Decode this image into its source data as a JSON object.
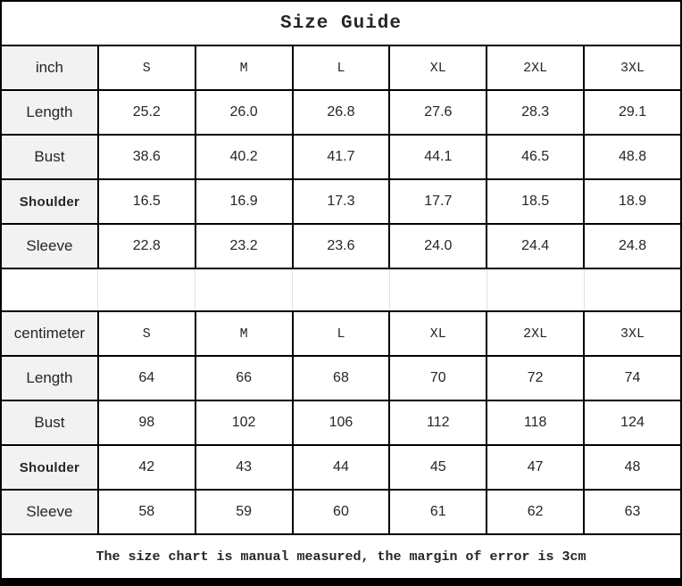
{
  "title": "Size Guide",
  "footer": "The size chart is manual measured, the margin of error is 3cm",
  "colors": {
    "label_bg": "#f2f2f2",
    "grid": "#000000",
    "faint_grid": "#e0e0e0"
  },
  "sections": [
    {
      "unit": "inch",
      "sizes": [
        "S",
        "M",
        "L",
        "XL",
        "2XL",
        "3XL"
      ],
      "rows": [
        {
          "label": "Length",
          "values": [
            "25.2",
            "26.0",
            "26.8",
            "27.6",
            "28.3",
            "29.1"
          ]
        },
        {
          "label": "Bust",
          "values": [
            "38.6",
            "40.2",
            "41.7",
            "44.1",
            "46.5",
            "48.8"
          ]
        },
        {
          "label": "Shoulder",
          "values": [
            "16.5",
            "16.9",
            "17.3",
            "17.7",
            "18.5",
            "18.9"
          ]
        },
        {
          "label": "Sleeve",
          "values": [
            "22.8",
            "23.2",
            "23.6",
            "24.0",
            "24.4",
            "24.8"
          ]
        }
      ]
    },
    {
      "unit": "centimeter",
      "sizes": [
        "S",
        "M",
        "L",
        "XL",
        "2XL",
        "3XL"
      ],
      "rows": [
        {
          "label": "Length",
          "values": [
            "64",
            "66",
            "68",
            "70",
            "72",
            "74"
          ]
        },
        {
          "label": "Bust",
          "values": [
            "98",
            "102",
            "106",
            "112",
            "118",
            "124"
          ]
        },
        {
          "label": "Shoulder",
          "values": [
            "42",
            "43",
            "44",
            "45",
            "47",
            "48"
          ]
        },
        {
          "label": "Sleeve",
          "values": [
            "58",
            "59",
            "60",
            "61",
            "62",
            "63"
          ]
        }
      ]
    }
  ],
  "chart_data": {
    "type": "table",
    "title": "Size Guide",
    "columns": [
      "",
      "S",
      "M",
      "L",
      "XL",
      "2XL",
      "3XL"
    ],
    "rows_inch": [
      [
        "Length",
        25.2,
        26.0,
        26.8,
        27.6,
        28.3,
        29.1
      ],
      [
        "Bust",
        38.6,
        40.2,
        41.7,
        44.1,
        46.5,
        48.8
      ],
      [
        "Shoulder",
        16.5,
        16.9,
        17.3,
        17.7,
        18.5,
        18.9
      ],
      [
        "Sleeve",
        22.8,
        23.2,
        23.6,
        24.0,
        24.4,
        24.8
      ]
    ],
    "rows_centimeter": [
      [
        "Length",
        64,
        66,
        68,
        70,
        72,
        74
      ],
      [
        "Bust",
        98,
        102,
        106,
        112,
        118,
        124
      ],
      [
        "Shoulder",
        42,
        43,
        44,
        45,
        47,
        48
      ],
      [
        "Sleeve",
        58,
        59,
        60,
        61,
        62,
        63
      ]
    ],
    "note": "The size chart is manual measured, the margin of error is 3cm"
  }
}
